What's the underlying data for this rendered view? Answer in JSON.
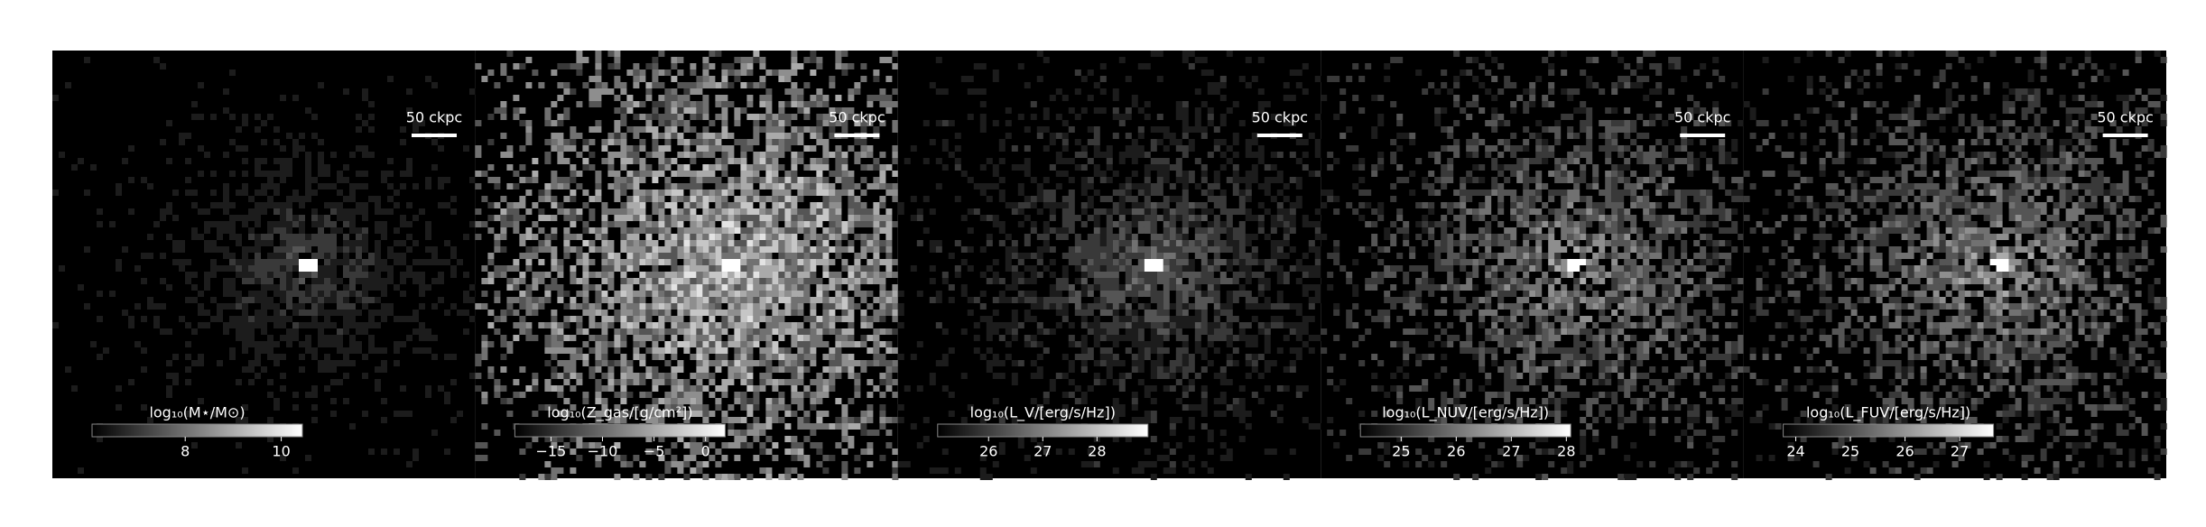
{
  "chart_data": [
    {
      "type": "image",
      "scalebar": "50 ckpc",
      "colorbar": {
        "label": "log₁₀(M⋆/M⊙)",
        "clim": [
          6.06,
          10.44
        ],
        "ticks": [
          8,
          10
        ]
      }
    },
    {
      "type": "image",
      "scalebar": "50 ckpc",
      "colorbar": {
        "label": "log₁₀(Z_gas/[g/cm²])",
        "clim": [
          -18.5,
          1.9
        ],
        "ticks": [
          {
            "value": -15,
            "label": "−15"
          },
          {
            "value": -10,
            "label": "−10"
          },
          {
            "value": -5,
            "label": "−5"
          },
          0
        ]
      }
    },
    {
      "type": "image",
      "scalebar": "50 ckpc",
      "colorbar": {
        "label": "log₁₀(L_V/[erg/s/Hz])",
        "clim": [
          25.06,
          28.94
        ],
        "ticks": [
          26,
          27,
          28
        ]
      }
    },
    {
      "type": "image",
      "scalebar": "50 ckpc",
      "colorbar": {
        "label": "log₁₀(L_NUV/[erg/s/Hz])",
        "clim": [
          24.26,
          28.08
        ],
        "ticks": [
          25,
          26,
          27,
          28
        ]
      }
    },
    {
      "type": "image",
      "scalebar": "50 ckpc",
      "colorbar": {
        "label": "log₁₀(L_FUV/[erg/s/Hz])",
        "clim": [
          23.77,
          27.62
        ],
        "ticks": [
          24,
          25,
          26,
          27
        ]
      }
    }
  ]
}
